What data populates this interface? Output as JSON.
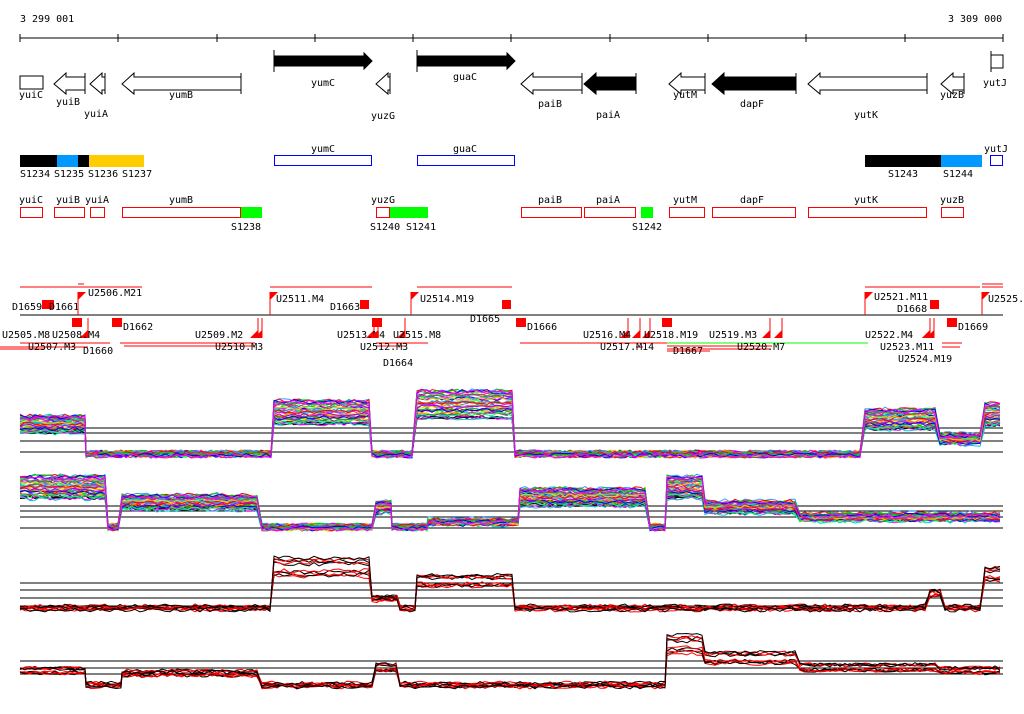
{
  "ruler": {
    "start": "3 299 001",
    "end": "3 309 000"
  },
  "genes": [
    {
      "name": "yuiC",
      "strand": "box",
      "fill": "white"
    },
    {
      "name": "yuiB",
      "strand": "-",
      "fill": "white"
    },
    {
      "name": "yuiA",
      "strand": "-",
      "fill": "white"
    },
    {
      "name": "yumB",
      "strand": "-",
      "fill": "white"
    },
    {
      "name": "yumC",
      "strand": "+",
      "fill": "black"
    },
    {
      "name": "yuzG",
      "strand": "-",
      "fill": "white"
    },
    {
      "name": "guaC",
      "strand": "+",
      "fill": "black"
    },
    {
      "name": "paiB",
      "strand": "-",
      "fill": "white"
    },
    {
      "name": "paiA",
      "strand": "-",
      "fill": "black"
    },
    {
      "name": "yutM",
      "strand": "-",
      "fill": "white"
    },
    {
      "name": "dapF",
      "strand": "-",
      "fill": "black"
    },
    {
      "name": "yutK",
      "strand": "-",
      "fill": "white"
    },
    {
      "name": "yuzB",
      "strand": "-",
      "fill": "white"
    },
    {
      "name": "yutJ",
      "strand": "flag",
      "fill": "white"
    }
  ],
  "segments": [
    {
      "label": "S1234",
      "color": "#000000"
    },
    {
      "label": "S1235",
      "color": "#0099ff"
    },
    {
      "label": "S1236",
      "color": "#000000"
    },
    {
      "label": "S1237",
      "color": "#ffcc00"
    },
    {
      "label": "yumC",
      "color": "#0000ff",
      "outline": true
    },
    {
      "label": "guaC",
      "color": "#0000ff",
      "outline": true
    },
    {
      "label": "S1243",
      "color": "#000000"
    },
    {
      "label": "S1244",
      "color": "#0099ff"
    },
    {
      "label": "yutJ",
      "color": "#0000ff",
      "outline": true
    }
  ],
  "cds": [
    {
      "label": "yuiC"
    },
    {
      "label": "yuiB"
    },
    {
      "label": "yuiA"
    },
    {
      "label": "yumB"
    },
    {
      "label": "S1238",
      "green": true
    },
    {
      "label": "yuzG"
    },
    {
      "label": "S1240",
      "green": true
    },
    {
      "label": "S1241",
      "green": true
    },
    {
      "label": "paiB"
    },
    {
      "label": "paiA"
    },
    {
      "label": "S1242",
      "green": true
    },
    {
      "label": "yutM"
    },
    {
      "label": "dapF"
    },
    {
      "label": "yutK"
    },
    {
      "label": "yuzB"
    }
  ],
  "features_upper": [
    "D1659",
    "D1661",
    "U2506.M21",
    "U2511.M4",
    "D1663",
    "U2514.M19",
    "D1665",
    "U2521.M11",
    "D1668",
    "U2525."
  ],
  "features_lower": [
    "U2505.M8",
    "U2507.M3",
    "U2508.M4",
    "D1660",
    "D1662",
    "U2509.M2",
    "U2510.M3",
    "U2513.M4",
    "U2512.M3",
    "D1664",
    "U2515.M8",
    "D1666",
    "U2516.M4",
    "U2517.M14",
    "U2518.M19",
    "D1667",
    "U2519.M3",
    "U2520.M7",
    "U2522.M4",
    "U2523.M11",
    "U2524.M19",
    "D1669"
  ],
  "colors": {
    "feature": "#ff0000",
    "green": "#00ff00",
    "blue": "#0000ff"
  }
}
